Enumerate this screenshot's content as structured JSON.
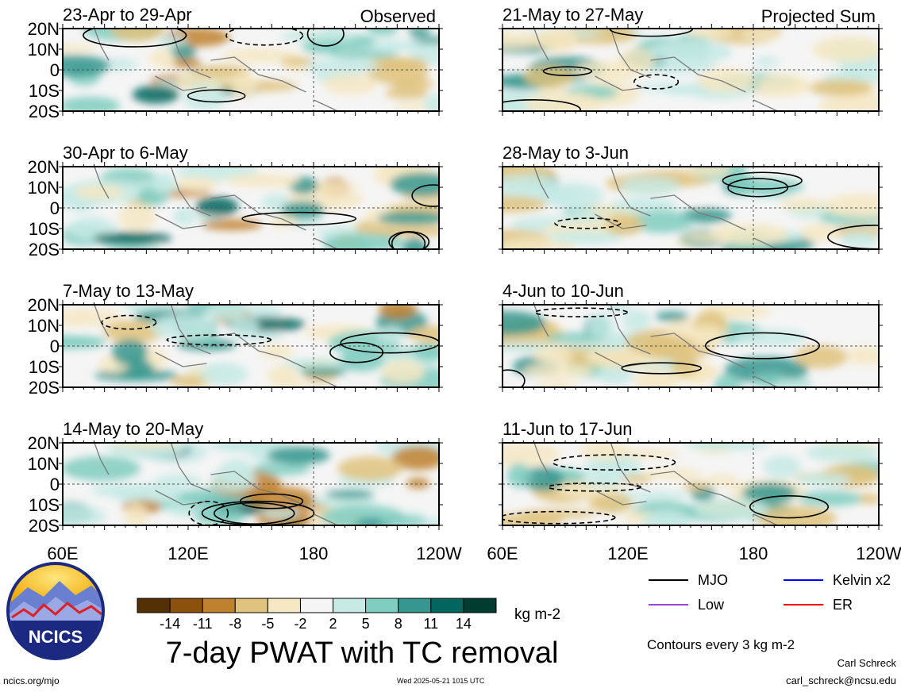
{
  "chart_data": {
    "type": "heatmap",
    "title": "7-day PWAT with TC removal",
    "variable": "7-day precipitable water anomaly with tropical cyclones removed",
    "units": "kg m-2",
    "x_ticks": [
      "60E",
      "120E",
      "180",
      "120W"
    ],
    "y_ticks": [
      "20N",
      "10N",
      "0",
      "10S",
      "20S"
    ],
    "xlim_deg_east": [
      60,
      240
    ],
    "ylim_deg": [
      -20,
      20
    ],
    "grid": "dashed reference lines at equator and 180",
    "colorbar": {
      "labels": [
        "-14",
        "-11",
        "-8",
        "-5",
        "-2",
        "2",
        "5",
        "8",
        "11",
        "14"
      ],
      "colors": [
        "#543005",
        "#8c510a",
        "#bf812d",
        "#dfc27d",
        "#f6e8c3",
        "#f5f5f5",
        "#c7eae5",
        "#80cdc1",
        "#35978f",
        "#01665e",
        "#003c30"
      ]
    },
    "panels": [
      {
        "label": "23-Apr to 29-Apr",
        "group": "Observed"
      },
      {
        "label": "30-Apr to 6-May",
        "group": "Observed"
      },
      {
        "label": "7-May to 13-May",
        "group": "Observed"
      },
      {
        "label": "14-May to 20-May",
        "group": "Observed"
      },
      {
        "label": "21-May to 27-May",
        "group": "Projected Sum"
      },
      {
        "label": "28-May to 3-Jun",
        "group": "Projected Sum"
      },
      {
        "label": "4-Jun to 10-Jun",
        "group": "Projected Sum"
      },
      {
        "label": "11-Jun to 17-Jun",
        "group": "Projected Sum"
      }
    ],
    "column_headers": [
      "Observed",
      "Projected Sum"
    ],
    "legend": {
      "placement": "bottom-right",
      "items": [
        {
          "name": "MJO",
          "color": "#000000"
        },
        {
          "name": "Kelvin x2",
          "color": "#0000ff"
        },
        {
          "name": "Low",
          "color": "#a040e0"
        },
        {
          "name": "ER",
          "color": "#ff0000"
        }
      ],
      "note": "Contours every 3 kg m-2"
    }
  },
  "branding": {
    "logo_text": "NCICS",
    "site": "ncics.org/mjo",
    "timestamp": "Wed 2025-05-21 1015 UTC",
    "author": "Carl Schreck",
    "email": "carl_schreck@ncsu.edu"
  }
}
